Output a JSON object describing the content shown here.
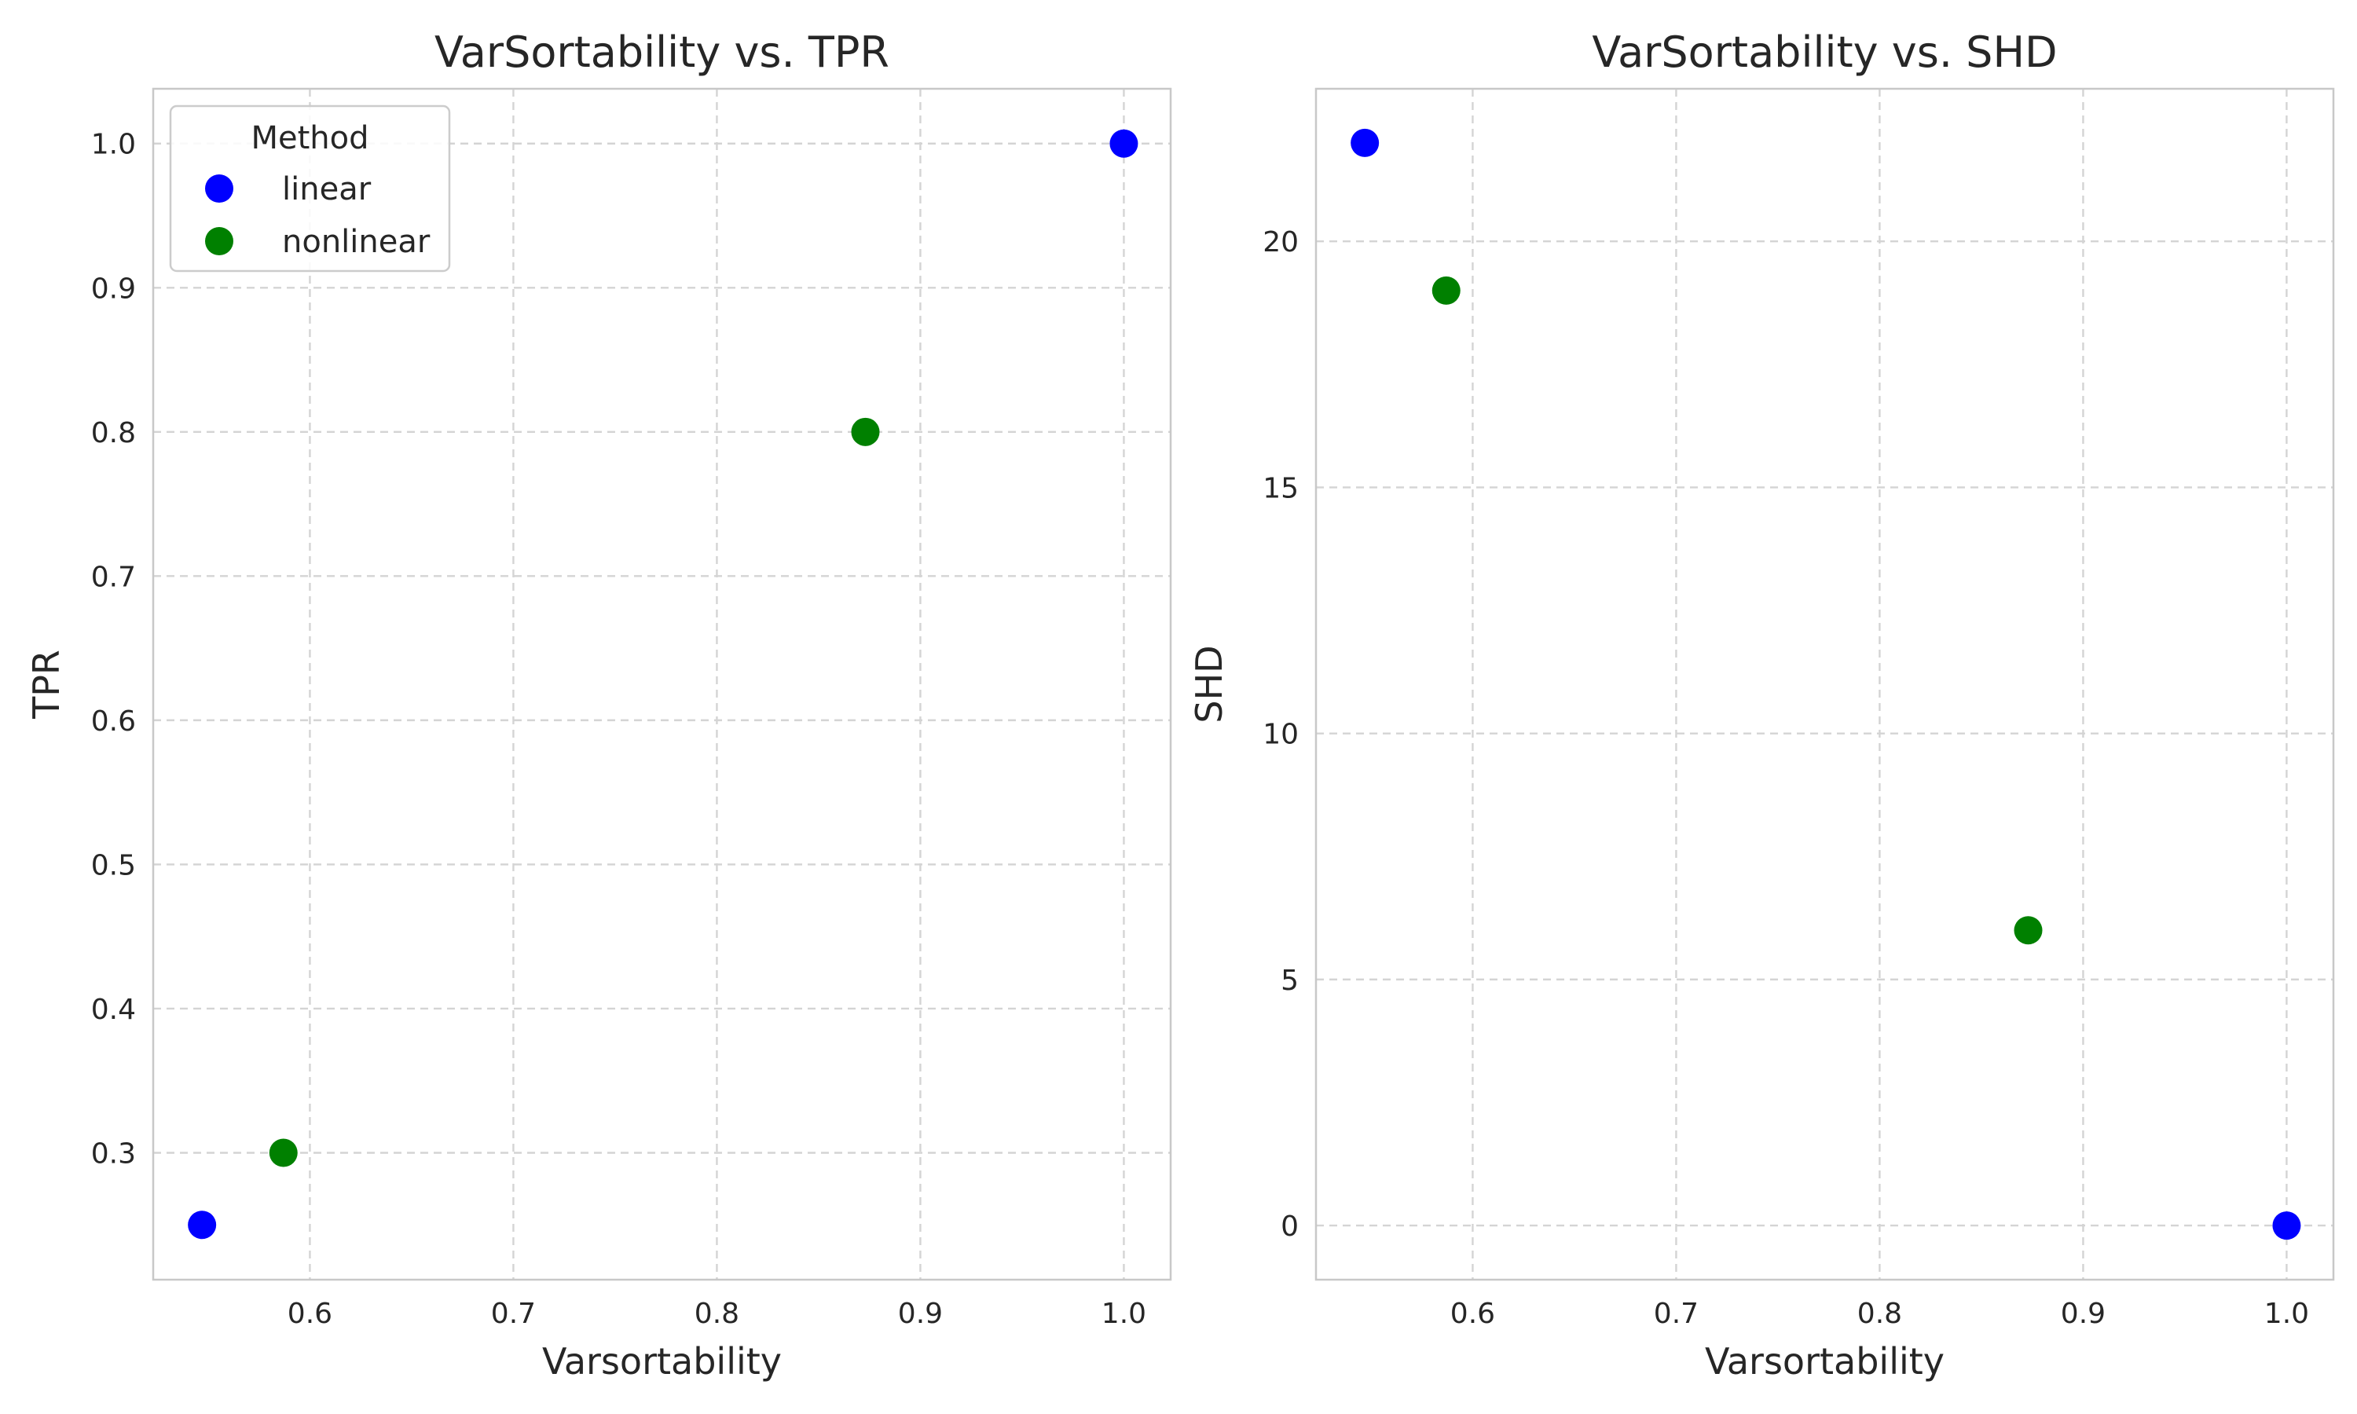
{
  "chart_data": [
    {
      "type": "scatter",
      "title": "VarSortability vs. TPR",
      "xlabel": "Varsortability",
      "ylabel": "TPR",
      "xlim": [
        0.523,
        1.023
      ],
      "ylim": [
        0.212,
        1.038
      ],
      "xticks": [
        0.6,
        0.7,
        0.8,
        0.9,
        1.0
      ],
      "yticks": [
        0.3,
        0.4,
        0.5,
        0.6,
        0.7,
        0.8,
        0.9,
        1.0
      ],
      "grid": true,
      "legend": {
        "title": "Method",
        "position": "top-left"
      },
      "series": [
        {
          "name": "linear",
          "color": "#0000ff",
          "points": [
            {
              "x": 0.547,
              "y": 0.25
            },
            {
              "x": 1.0,
              "y": 1.0
            }
          ]
        },
        {
          "name": "nonlinear",
          "color": "#008000",
          "points": [
            {
              "x": 0.587,
              "y": 0.3
            },
            {
              "x": 0.873,
              "y": 0.8
            }
          ]
        }
      ]
    },
    {
      "type": "scatter",
      "title": "VarSortability vs. SHD",
      "xlabel": "Varsortability",
      "ylabel": "SHD",
      "xlim": [
        0.523,
        1.023
      ],
      "ylim": [
        -1.1,
        23.1
      ],
      "xticks": [
        0.6,
        0.7,
        0.8,
        0.9,
        1.0
      ],
      "yticks": [
        0,
        5,
        10,
        15,
        20
      ],
      "grid": true,
      "series": [
        {
          "name": "linear",
          "color": "#0000ff",
          "points": [
            {
              "x": 0.547,
              "y": 22
            },
            {
              "x": 1.0,
              "y": 0
            }
          ]
        },
        {
          "name": "nonlinear",
          "color": "#008000",
          "points": [
            {
              "x": 0.587,
              "y": 19
            },
            {
              "x": 0.873,
              "y": 6
            }
          ]
        }
      ]
    }
  ]
}
